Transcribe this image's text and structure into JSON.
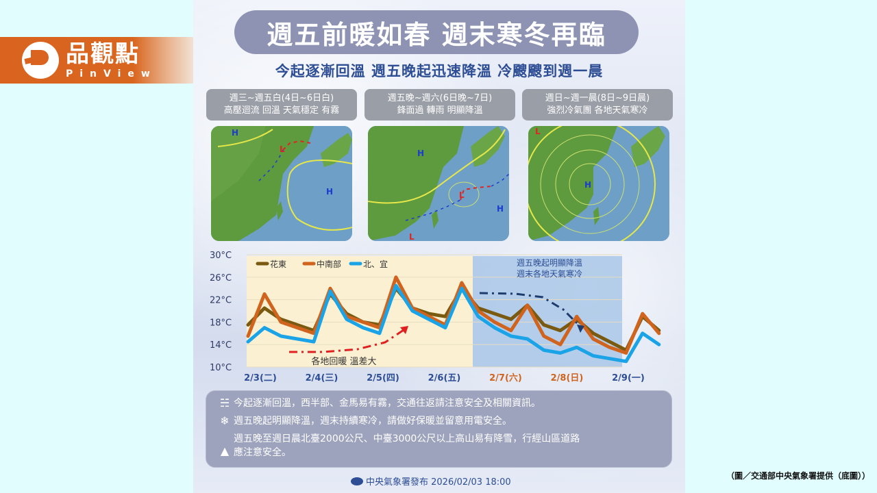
{
  "logo": {
    "name_cn": "品觀點",
    "name_en": "PinView",
    "color": "#d9631f"
  },
  "poster": {
    "title": "週五前暖如春 週末寒冬再臨",
    "subtitle": "今起逐漸回溫 週五晚起迅速降溫 冷颼颼到週一晨",
    "panels": [
      {
        "period": "週三~週五白(4日~6日白)",
        "desc": "高壓迴流 回溫 天氣穩定 有霧",
        "map_labels": [
          "H",
          "L",
          "H"
        ]
      },
      {
        "period": "週五晚~週六(6日晚~7日)",
        "desc": "鋒面過 轉雨 明顯降溫",
        "map_labels": [
          "H",
          "L",
          "H",
          "L"
        ]
      },
      {
        "period": "週日~週一晨(8日~9日晨)",
        "desc": "強烈冷氣團 各地天氣寒冷",
        "map_labels": [
          "L",
          "H"
        ]
      }
    ],
    "info": [
      {
        "icon": "fog-icon",
        "glyph": "☵",
        "text": "今起逐漸回溫，西半部、金馬易有霧，交通往返請注意安全及相關資訊。"
      },
      {
        "icon": "snowflake-icon",
        "glyph": "❄",
        "text": "週五晚起明顯降溫，週末持續寒冷，請做好保暖並留意用電安全。"
      },
      {
        "icon": "mountain-icon",
        "glyph": "▲",
        "text": "週五晚至週日晨北臺2000公尺、中臺3000公尺以上高山易有降雪，行經山區道路\n應注意安全。"
      }
    ],
    "footer": "中央氣象署發布 2026/02/03 18:00"
  },
  "credit": "（圖／交通部中央氣象署提供（底圖））",
  "chart_data": {
    "type": "line",
    "title": "",
    "xlabel": "",
    "ylabel": "°C",
    "ylim": [
      10,
      30
    ],
    "yticks": [
      "30°C",
      "26°C",
      "22°C",
      "18°C",
      "14°C",
      "10°C"
    ],
    "ytick_values": [
      30,
      26,
      22,
      18,
      14,
      10
    ],
    "categories": [
      "2/3(二)",
      "2/4(三)",
      "2/5(四)",
      "2/6(五)",
      "2/7(六)",
      "2/8(日)",
      "2/9(一)"
    ],
    "weekend_categories": [
      "2/7(六)",
      "2/8(日)"
    ],
    "legend_position": "top-left",
    "grid": true,
    "x_hours": [
      0,
      6,
      12,
      18,
      24,
      30,
      36,
      42,
      48,
      54,
      60,
      66,
      72,
      78,
      84,
      90,
      96,
      102,
      108,
      114,
      120,
      126,
      132,
      138,
      144,
      150
    ],
    "series": [
      {
        "name": "花東",
        "color": "#7a5a10",
        "values": [
          17.5,
          20.5,
          18.5,
          17.5,
          16.5,
          23,
          19.5,
          18.0,
          17.5,
          24,
          20.5,
          19.5,
          19,
          24,
          20.5,
          19.5,
          18.5,
          21,
          17.5,
          16.5,
          18.5,
          16,
          14.5,
          13,
          19,
          16.5
        ]
      },
      {
        "name": "中南部",
        "color": "#d0641e",
        "values": [
          15.5,
          23,
          18,
          17,
          16,
          24,
          19,
          18,
          17,
          26,
          20.5,
          19,
          17.5,
          25,
          20,
          18,
          16.5,
          21,
          15.5,
          14,
          19,
          15,
          13.5,
          12.5,
          19.5,
          16
        ]
      },
      {
        "name": "北、宜",
        "color": "#1aa3e6",
        "values": [
          14.5,
          17,
          15.5,
          15,
          14.5,
          23.5,
          18.5,
          17,
          16,
          24.5,
          20,
          18.5,
          17,
          24,
          19,
          17,
          15.5,
          15,
          13,
          12.5,
          13.5,
          12,
          11.5,
          11,
          16,
          14
        ]
      }
    ],
    "annotations": [
      {
        "text": "各地回暖 溫差大",
        "style": "red dash-dot arrow rising",
        "color": "#e02020"
      },
      {
        "text": "週五晚起明顯降溫\n週末各地天氣寒冷",
        "style": "navy dash-dot arrow falling",
        "color": "#1f3c6e"
      }
    ],
    "shaded_regions": [
      {
        "from": "2/3",
        "to": "2/6 evening",
        "color": "#fbf1d2",
        "label": "warm"
      },
      {
        "from": "2/6 evening",
        "to": "2/9 early",
        "color": "#a9c7e8",
        "label": "cold"
      }
    ]
  }
}
